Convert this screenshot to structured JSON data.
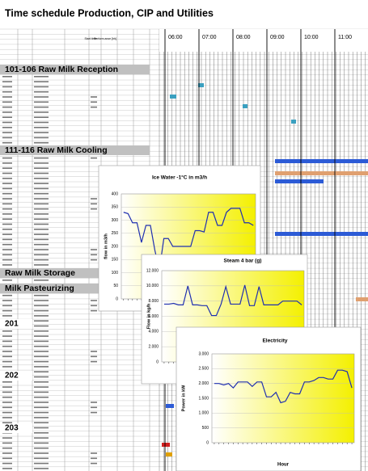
{
  "header": {
    "title": "Time schedule Production, CIP and Utilities",
    "columns": [
      "Start time",
      "Perform ance [hh]"
    ],
    "times": [
      "06:00",
      "07:00",
      "08:00",
      "09:00",
      "10:00",
      "11:00"
    ]
  },
  "sections": [
    "101-106 Raw Milk Reception",
    "111-116 Raw Milk Cooling",
    "Raw Milk Storage",
    "Milk Pasteurizing",
    "201",
    "202",
    "203"
  ],
  "chart_data": [
    {
      "type": "line",
      "title": "Ice Water -1°C in m3/h",
      "y_label": "flow in m3/h",
      "color": "#1f2fb0",
      "grid": true,
      "ylim": [
        0,
        400
      ],
      "yticks": [
        0,
        50,
        100,
        150,
        200,
        250,
        300,
        350,
        400
      ],
      "values": [
        330,
        325,
        290,
        290,
        215,
        280,
        280,
        185,
        110,
        230,
        230,
        200,
        200,
        200,
        200,
        200,
        260,
        260,
        255,
        330,
        330,
        280,
        280,
        330,
        345,
        345,
        345,
        290,
        290,
        280
      ]
    },
    {
      "type": "line",
      "title": "Steam 4 bar (g)",
      "y_label": "Flow in kg/h",
      "color": "#1f2fb0",
      "grid": true,
      "ylim": [
        0,
        12000
      ],
      "yticks": [
        0,
        {
          "value": 2000,
          "label": "2.000"
        },
        {
          "value": 4000,
          "label": "4.000"
        },
        {
          "value": 6000,
          "label": "6.000"
        },
        {
          "value": 8000,
          "label": "8.000"
        },
        {
          "value": 10000,
          "label": "10.000"
        },
        {
          "value": 12000,
          "label": "12.000"
        }
      ],
      "values": [
        7600,
        7600,
        7700,
        7500,
        7500,
        10000,
        7500,
        7500,
        7400,
        7400,
        6100,
        6100,
        7600,
        9900,
        7600,
        7600,
        7600,
        10100,
        7400,
        7400,
        9900,
        7500,
        7500,
        7500,
        7500,
        8000,
        8000,
        8000,
        8000,
        7500
      ]
    },
    {
      "type": "line",
      "title": "Electricity",
      "y_label": "Power in kW",
      "x_label": "Hour",
      "color": "#1f2fb0",
      "grid": true,
      "ylim": [
        0,
        3000
      ],
      "yticks": [
        0,
        500,
        {
          "value": 1000,
          "label": "1.000"
        },
        {
          "value": 1500,
          "label": "1.500"
        },
        {
          "value": 2000,
          "label": "2.000"
        },
        {
          "value": 2500,
          "label": "2.500"
        },
        {
          "value": 3000,
          "label": "3.000"
        }
      ],
      "values": [
        2000,
        2000,
        1950,
        2000,
        1850,
        2050,
        2050,
        2050,
        1900,
        2050,
        2050,
        1550,
        1550,
        1700,
        1350,
        1400,
        1700,
        1650,
        1650,
        2050,
        2050,
        2100,
        2200,
        2200,
        2150,
        2150,
        2450,
        2450,
        2400,
        1850
      ]
    }
  ]
}
